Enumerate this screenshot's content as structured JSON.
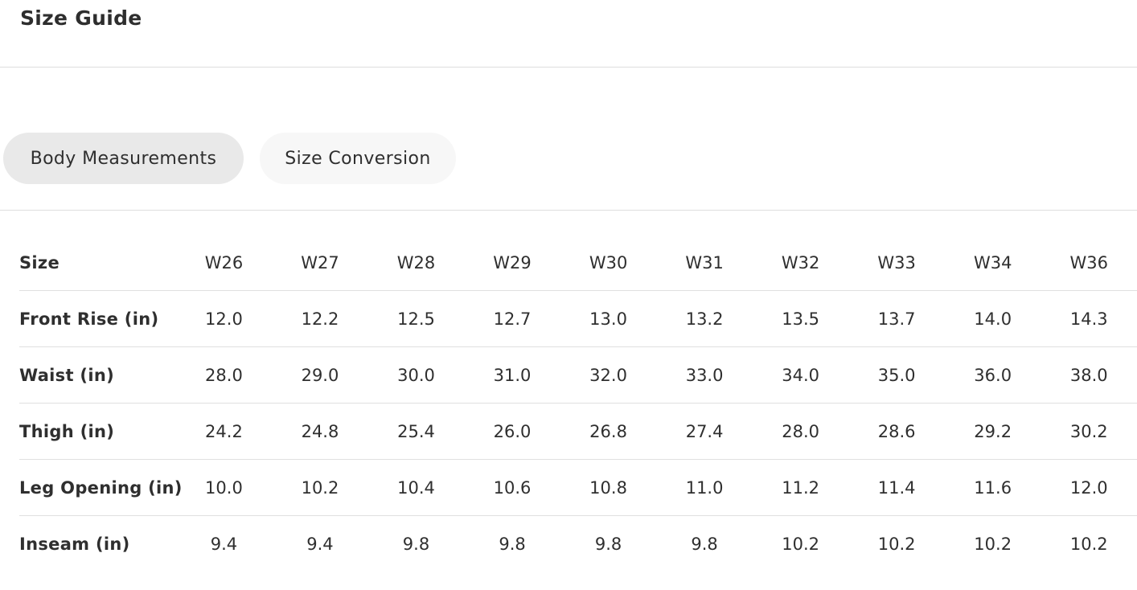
{
  "page": {
    "title": "Size Guide"
  },
  "tabs": [
    {
      "label": "Body Measurements",
      "active": true
    },
    {
      "label": "Size Conversion",
      "active": false
    }
  ],
  "table": {
    "header": {
      "label": "Size",
      "sizes": [
        "W26",
        "W27",
        "W28",
        "W29",
        "W30",
        "W31",
        "W32",
        "W33",
        "W34",
        "W36"
      ]
    },
    "rows": [
      {
        "label": "Front Rise (in)",
        "values": [
          "12.0",
          "12.2",
          "12.5",
          "12.7",
          "13.0",
          "13.2",
          "13.5",
          "13.7",
          "14.0",
          "14.3"
        ]
      },
      {
        "label": "Waist (in)",
        "values": [
          "28.0",
          "29.0",
          "30.0",
          "31.0",
          "32.0",
          "33.0",
          "34.0",
          "35.0",
          "36.0",
          "38.0"
        ]
      },
      {
        "label": "Thigh (in)",
        "values": [
          "24.2",
          "24.8",
          "25.4",
          "26.0",
          "26.8",
          "27.4",
          "28.0",
          "28.6",
          "29.2",
          "30.2"
        ]
      },
      {
        "label": "Leg Opening (in)",
        "values": [
          "10.0",
          "10.2",
          "10.4",
          "10.6",
          "10.8",
          "11.0",
          "11.2",
          "11.4",
          "11.6",
          "12.0"
        ]
      },
      {
        "label": "Inseam (in)",
        "values": [
          "9.4",
          "9.4",
          "9.8",
          "9.8",
          "9.8",
          "9.8",
          "10.2",
          "10.2",
          "10.2",
          "10.2"
        ]
      }
    ]
  },
  "colors": {
    "active_tab_bg": "#e9e9e9",
    "inactive_tab_bg": "#f7f7f7",
    "divider": "#dedede",
    "text": "#2f2f2f"
  }
}
